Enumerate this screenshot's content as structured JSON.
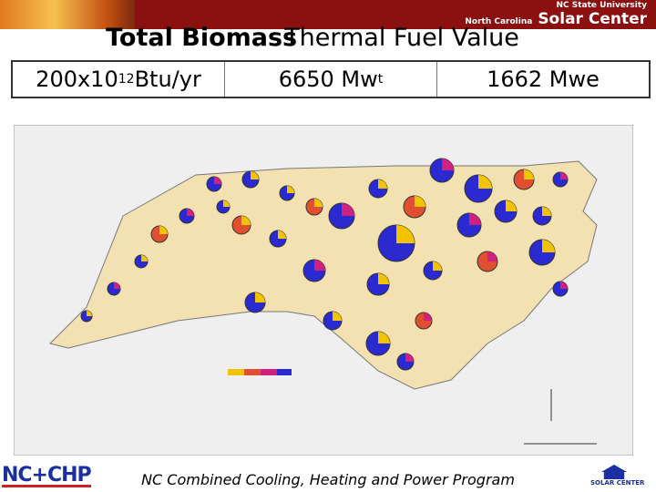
{
  "header": {
    "university": "NC State University",
    "center_prefix": "North Carolina",
    "center_name": "Solar Center"
  },
  "title": {
    "main": "Total Biomass",
    "overlap": "Thermal Fuel Value"
  },
  "stats": [
    {
      "base": "200x10",
      "sup": "12",
      "unit": "Btu/yr"
    },
    {
      "base": "6650 Mw",
      "sub": "t"
    },
    {
      "base": "1662 Mwe"
    }
  ],
  "footer": {
    "logo": "NC+CHP",
    "program": "NC Combined Cooling, Heating and Power Program",
    "right_logo": "SOLAR CENTER"
  }
}
